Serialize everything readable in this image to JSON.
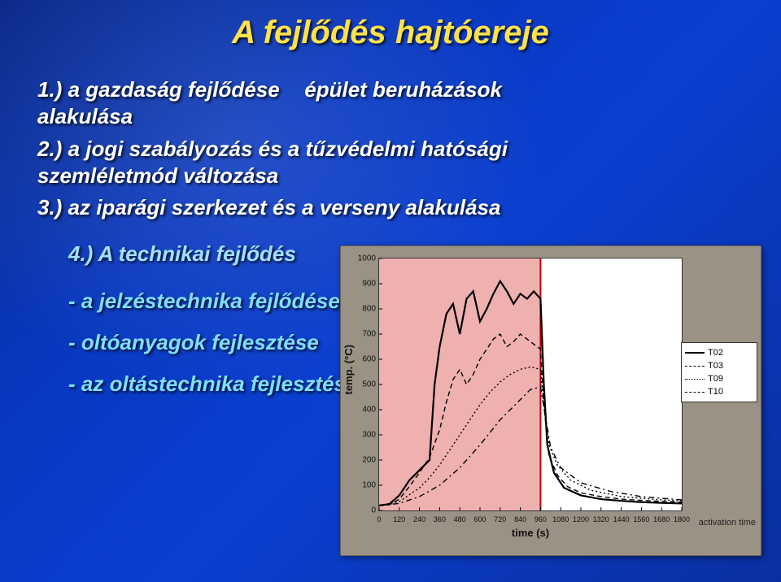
{
  "title": "A fejlődés hajtóereje",
  "bullets": {
    "b1a": "1.) a gazdaság fejlődése",
    "b1b": "épület beruházások",
    "b1c": "alakulása",
    "b2a": "2.) a jogi szabályozás és a tűzvédelmi hatósági",
    "b2b": "szemléletmód változása",
    "b3": "3.) az iparági szerkezet és a verseny alakulása",
    "b4": "4.) A technikai fejlődés",
    "s1": "- a jelzéstechnika fejlődése",
    "s2": "- oltóanyagok fejlesztése",
    "s3": "- az oltástechnika fejlesztése"
  },
  "chart": {
    "type": "line",
    "ylabel": "temp. (°C)",
    "xlabel": "time (s)",
    "activation_label": "activation time",
    "ylim": [
      0,
      1000
    ],
    "ytick_step": 100,
    "xlim": [
      0,
      1800
    ],
    "xtick_step": 120,
    "background_color": "#ffffff",
    "panel_color": "#9a9284",
    "activation_x": 960,
    "overlay_color": "rgba(210,30,30,0.35)",
    "series": [
      {
        "name": "T02",
        "style": "solid",
        "width": 2.2,
        "color": "#000000",
        "points": [
          [
            0,
            20
          ],
          [
            60,
            25
          ],
          [
            120,
            60
          ],
          [
            180,
            120
          ],
          [
            240,
            160
          ],
          [
            300,
            200
          ],
          [
            330,
            500
          ],
          [
            360,
            650
          ],
          [
            400,
            780
          ],
          [
            440,
            820
          ],
          [
            480,
            700
          ],
          [
            520,
            840
          ],
          [
            560,
            870
          ],
          [
            600,
            750
          ],
          [
            640,
            800
          ],
          [
            680,
            860
          ],
          [
            720,
            910
          ],
          [
            760,
            870
          ],
          [
            800,
            820
          ],
          [
            840,
            860
          ],
          [
            880,
            840
          ],
          [
            920,
            870
          ],
          [
            960,
            840
          ],
          [
            980,
            500
          ],
          [
            1000,
            260
          ],
          [
            1040,
            150
          ],
          [
            1100,
            90
          ],
          [
            1200,
            60
          ],
          [
            1320,
            45
          ],
          [
            1440,
            38
          ],
          [
            1560,
            33
          ],
          [
            1680,
            30
          ],
          [
            1800,
            28
          ]
        ]
      },
      {
        "name": "T03",
        "style": "dash",
        "width": 1.4,
        "color": "#000000",
        "points": [
          [
            0,
            20
          ],
          [
            60,
            22
          ],
          [
            120,
            45
          ],
          [
            180,
            95
          ],
          [
            240,
            150
          ],
          [
            300,
            210
          ],
          [
            360,
            320
          ],
          [
            400,
            430
          ],
          [
            440,
            520
          ],
          [
            480,
            560
          ],
          [
            520,
            500
          ],
          [
            560,
            540
          ],
          [
            600,
            600
          ],
          [
            640,
            640
          ],
          [
            680,
            680
          ],
          [
            720,
            700
          ],
          [
            760,
            650
          ],
          [
            800,
            670
          ],
          [
            840,
            700
          ],
          [
            880,
            680
          ],
          [
            920,
            660
          ],
          [
            960,
            640
          ],
          [
            980,
            420
          ],
          [
            1010,
            220
          ],
          [
            1060,
            140
          ],
          [
            1120,
            95
          ],
          [
            1200,
            70
          ],
          [
            1320,
            55
          ],
          [
            1440,
            45
          ],
          [
            1560,
            40
          ],
          [
            1680,
            36
          ],
          [
            1800,
            33
          ]
        ]
      },
      {
        "name": "T09",
        "style": "dot",
        "width": 1.4,
        "color": "#000000",
        "points": [
          [
            0,
            20
          ],
          [
            120,
            35
          ],
          [
            240,
            90
          ],
          [
            300,
            130
          ],
          [
            360,
            180
          ],
          [
            420,
            240
          ],
          [
            480,
            300
          ],
          [
            540,
            360
          ],
          [
            600,
            420
          ],
          [
            660,
            470
          ],
          [
            720,
            510
          ],
          [
            780,
            540
          ],
          [
            840,
            560
          ],
          [
            900,
            570
          ],
          [
            960,
            560
          ],
          [
            980,
            420
          ],
          [
            1010,
            260
          ],
          [
            1060,
            180
          ],
          [
            1140,
            120
          ],
          [
            1260,
            80
          ],
          [
            1440,
            55
          ],
          [
            1680,
            42
          ],
          [
            1800,
            38
          ]
        ]
      },
      {
        "name": "T10",
        "style": "dashdot",
        "width": 1.4,
        "color": "#000000",
        "points": [
          [
            0,
            20
          ],
          [
            120,
            28
          ],
          [
            240,
            55
          ],
          [
            360,
            100
          ],
          [
            480,
            170
          ],
          [
            600,
            260
          ],
          [
            720,
            360
          ],
          [
            840,
            440
          ],
          [
            900,
            480
          ],
          [
            960,
            490
          ],
          [
            990,
            370
          ],
          [
            1020,
            250
          ],
          [
            1080,
            170
          ],
          [
            1200,
            110
          ],
          [
            1380,
            75
          ],
          [
            1560,
            55
          ],
          [
            1800,
            42
          ]
        ]
      }
    ],
    "legend_labels": [
      "T02",
      "T03",
      "T09",
      "T10"
    ]
  }
}
